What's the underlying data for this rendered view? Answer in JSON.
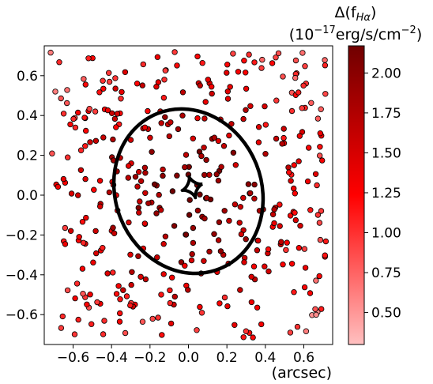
{
  "chart_data": {
    "type": "scatter",
    "xlabel": "(arcsec)",
    "ylabel": "",
    "xlim": [
      -0.75,
      0.75
    ],
    "ylim": [
      -0.75,
      0.75
    ],
    "xticks": [
      -0.6,
      -0.4,
      -0.2,
      0.0,
      0.2,
      0.4,
      0.6
    ],
    "xtick_labels": [
      "−0.6",
      "−0.4",
      "−0.2",
      "0.0",
      "0.2",
      "0.4",
      "0.6"
    ],
    "yticks": [
      -0.6,
      -0.4,
      -0.2,
      0.0,
      0.2,
      0.4,
      0.6
    ],
    "ytick_labels": [
      "−0.6",
      "−0.4",
      "−0.2",
      "0.0",
      "0.2",
      "0.4",
      "0.6"
    ],
    "grid": false,
    "colorbar": {
      "title_line1": "Δ(f",
      "title_sub": "Hα",
      "title_line1_end": ")",
      "title_line2": "(10",
      "title_sup": "−17",
      "title_line2_mid": "erg/s/cm",
      "title_sup2": "−2",
      "title_line2_end": ")",
      "min": 0.3,
      "max": 2.17,
      "ticks": [
        0.5,
        0.75,
        1.0,
        1.25,
        1.5,
        1.75,
        2.0
      ],
      "tick_labels": [
        "0.50",
        "0.75",
        "1.00",
        "1.25",
        "1.50",
        "1.75",
        "2.00"
      ],
      "colors": [
        "#ffb3b3",
        "#ff0000",
        "#7a0000"
      ]
    },
    "caustic_ellipse": {
      "cx": 0.0,
      "cy": 0.02,
      "rx": 0.38,
      "ry": 0.42,
      "rotation_deg": -22
    },
    "astroid_caustic": {
      "cx": 0.02,
      "cy": 0.04,
      "size": 0.055
    },
    "seed": 42,
    "n_points": 420
  }
}
